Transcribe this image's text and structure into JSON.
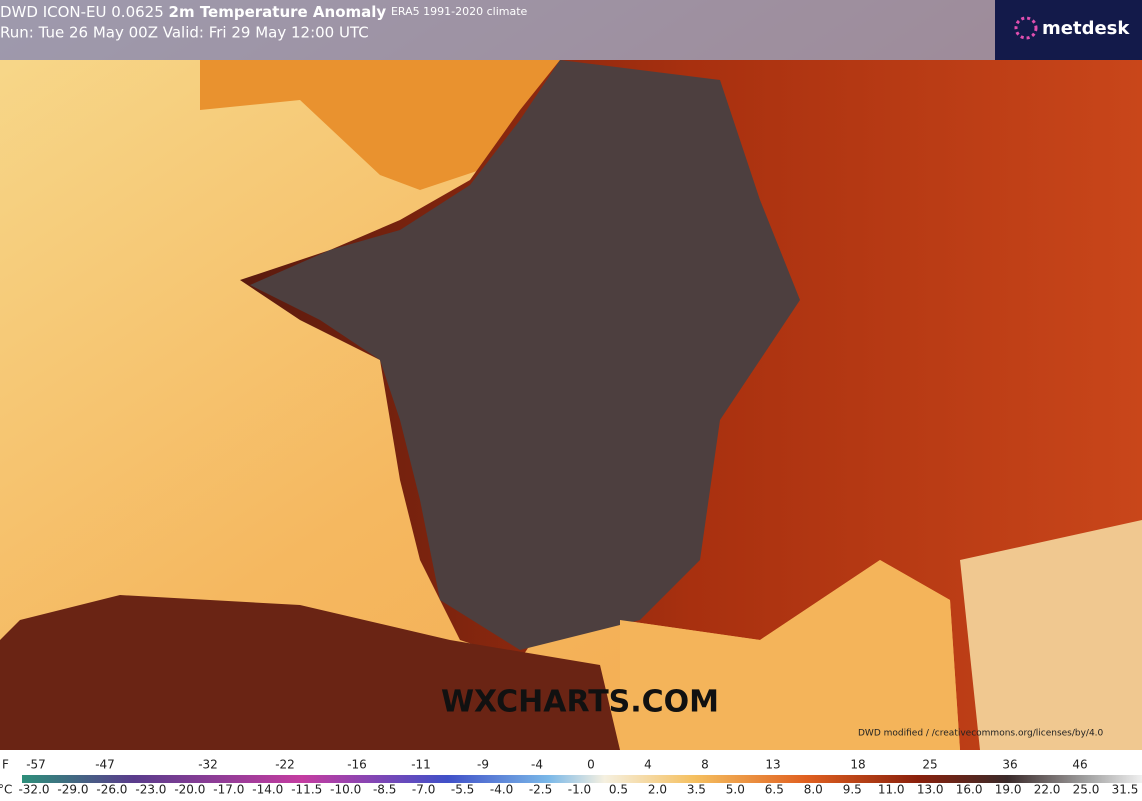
{
  "header": {
    "model": "DWD ICON-EU 0.0625",
    "field": "2m Temperature Anomaly",
    "climate": "ERA5 1991-2020 climate",
    "run": "Run: Tue 26 May 00Z Valid: Fri 29 May 12:00 UTC"
  },
  "logo": "metdesk",
  "watermark": "WXCHARTS.COM",
  "attribution": "DWD modified / /creativecommons.org/licenses/by/4.0",
  "legend": {
    "f_unit": "F",
    "f_labels": [
      "-57",
      "-47",
      "-32",
      "-22",
      "-16",
      "-11",
      "-9",
      "-4",
      "0",
      "4",
      "8",
      "13",
      "18",
      "25",
      "36",
      "46"
    ],
    "c_unit": "°C",
    "c_labels": [
      "-32.0",
      "-29.0",
      "-26.0",
      "-23.0",
      "-20.0",
      "-17.0",
      "-14.0",
      "-11.5",
      "-10.0",
      "-8.5",
      "-7.0",
      "-5.5",
      "-4.0",
      "-2.5",
      "-1.0",
      "0.5",
      "2.0",
      "3.5",
      "5.0",
      "6.5",
      "8.0",
      "9.5",
      "11.0",
      "13.0",
      "16.0",
      "19.0",
      "22.0",
      "25.0",
      "31.5"
    ]
  }
}
